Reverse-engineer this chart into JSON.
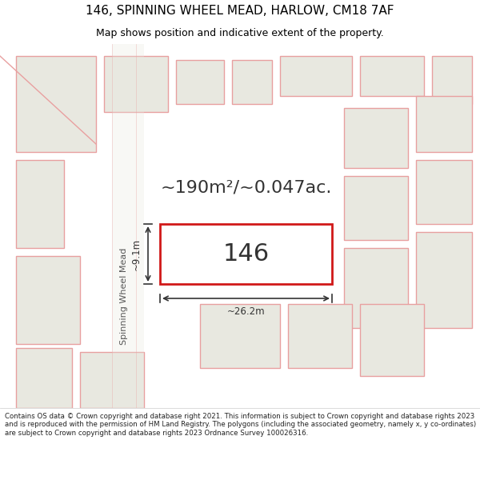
{
  "title_line1": "146, SPINNING WHEEL MEAD, HARLOW, CM18 7AF",
  "title_line2": "Map shows position and indicative extent of the property.",
  "area_text": "~190m²/~0.047ac.",
  "property_label": "146",
  "dim_width": "~26.2m",
  "dim_height": "~9.1m",
  "street_name": "Spinning Wheel Mead",
  "footer_text": "Contains OS data © Crown copyright and database right 2021. This information is subject to Crown copyright and database rights 2023 and is reproduced with the permission of HM Land Registry. The polygons (including the associated geometry, namely x, y co-ordinates) are subject to Crown copyright and database rights 2023 Ordnance Survey 100026316.",
  "bg_color": "#f0f0e8",
  "map_bg": "#f0f0e8",
  "building_outline_color": "#e8a0a0",
  "building_fill_color": "#e8e8e0",
  "highlight_color": "#cc0000",
  "highlight_fill": "#ffffff",
  "footer_bg": "#ffffff",
  "title_bg": "#ffffff"
}
